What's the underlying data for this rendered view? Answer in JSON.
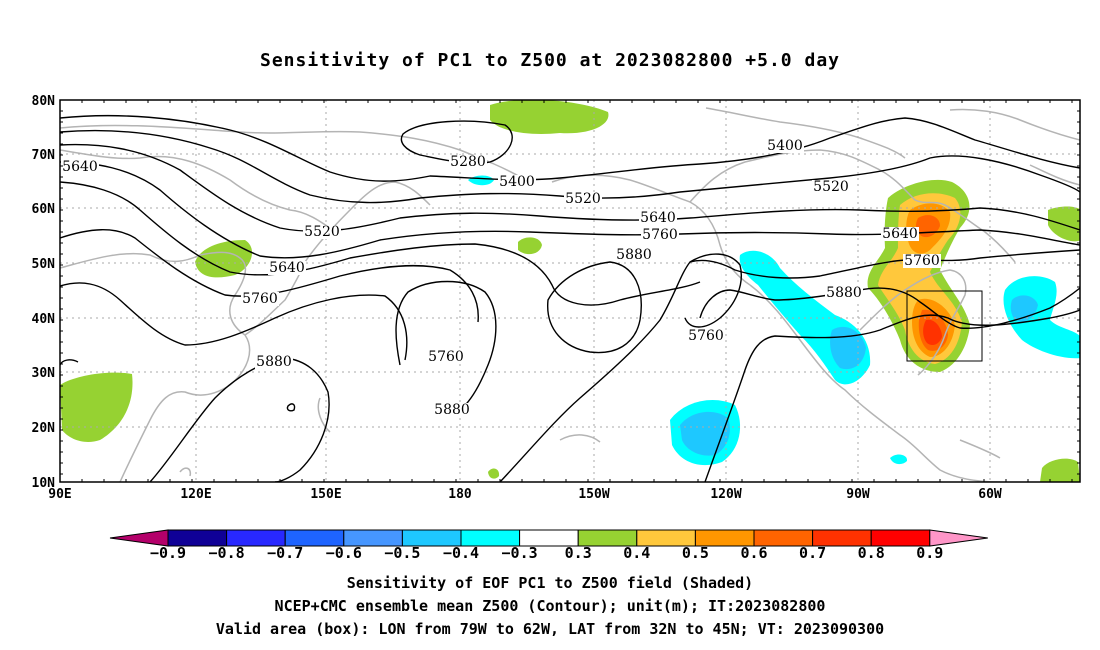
{
  "title": "Sensitivity of PC1 to Z500 at 2023082800 +5.0 day",
  "lat_labels": [
    "80N",
    "70N",
    "60N",
    "50N",
    "40N",
    "30N",
    "20N",
    "10N"
  ],
  "lon_labels": [
    "90E",
    "120E",
    "150E",
    "180",
    "150W",
    "120W",
    "90W",
    "60W"
  ],
  "contour_labels": [
    "5280",
    "5400",
    "5400",
    "5520",
    "5520",
    "5640",
    "5640",
    "5640",
    "5760",
    "5760",
    "5760",
    "5760",
    "5880",
    "5880",
    "5880",
    "5880"
  ],
  "colorbar": {
    "colors": [
      "#b4006a",
      "#0f0096",
      "#2828ff",
      "#1e64ff",
      "#4696ff",
      "#1ec8ff",
      "#00ffff",
      "#ffffff",
      "#96d232",
      "#ffc83c",
      "#ff9600",
      "#ff6400",
      "#ff3200",
      "#ff0000",
      "#ff96c8"
    ],
    "labels": [
      "-0.9",
      "-0.8",
      "-0.7",
      "-0.6",
      "-0.5",
      "-0.4",
      "-0.3",
      "0.3",
      "0.4",
      "0.5",
      "0.6",
      "0.7",
      "0.8",
      "0.9"
    ]
  },
  "captions": {
    "line1": "Sensitivity of EOF PC1 to Z500 field (Shaded)",
    "line2": "NCEP+CMC ensemble mean Z500 (Contour); unit(m); IT:2023082800",
    "line3": "Valid area (box): LON from 79W to 62W, LAT from 32N to 45N; VT: 2023090300"
  }
}
